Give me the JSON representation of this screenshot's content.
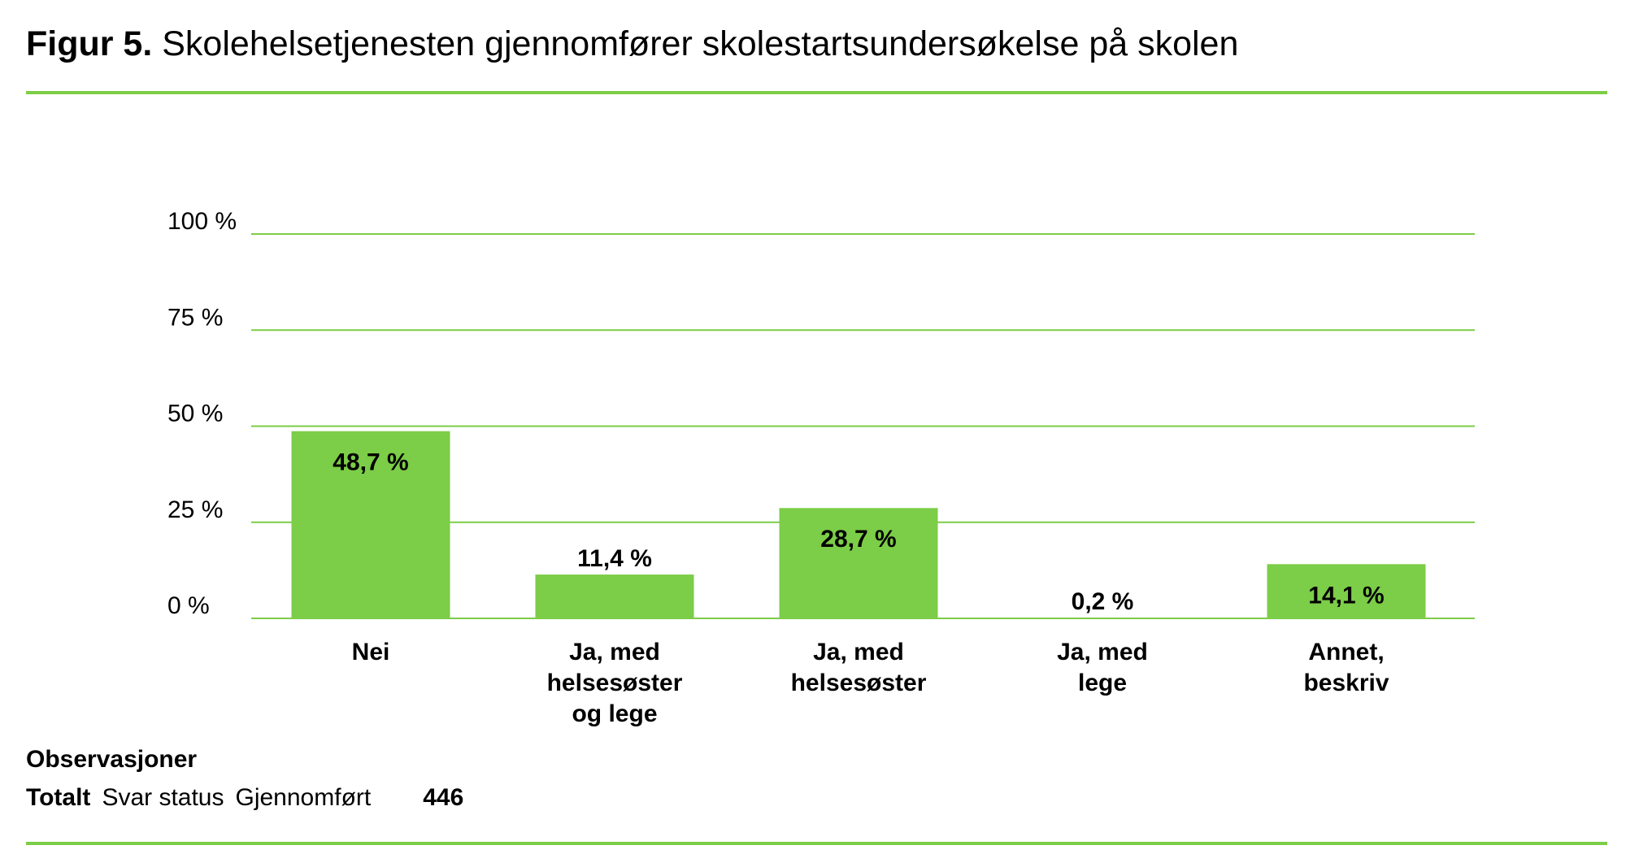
{
  "title": {
    "prefix": "Figur 5.",
    "text": "Skolehelsetjenesten gjennomfører skolestartsundersøkelse på skolen"
  },
  "colors": {
    "bar": "#7ccd47",
    "grid": "#7ccd47",
    "rule": "#7ccd47"
  },
  "chart_data": {
    "type": "bar",
    "categories": [
      [
        "Nei"
      ],
      [
        "Ja, med",
        "helsesøster",
        "og lege"
      ],
      [
        "Ja, med",
        "helsesøster"
      ],
      [
        "Ja, med",
        "lege"
      ],
      [
        "Annet,",
        "beskriv"
      ]
    ],
    "values": [
      48.7,
      11.4,
      28.7,
      0.2,
      14.1
    ],
    "data_labels": [
      "48,7 %",
      "11,4 %",
      "28,7 %",
      "0,2 %",
      "14,1 %"
    ],
    "yticks": [
      0,
      25,
      50,
      75,
      100
    ],
    "ytick_labels": [
      "0 %",
      "25 %",
      "50 %",
      "75 %",
      "100 %"
    ],
    "ylim": [
      0,
      100
    ],
    "grid": true
  },
  "observations": {
    "heading": "Observasjoner",
    "row": {
      "label": "Totalt",
      "field": "Svar status",
      "status": "Gjennomført",
      "count": "446"
    }
  }
}
